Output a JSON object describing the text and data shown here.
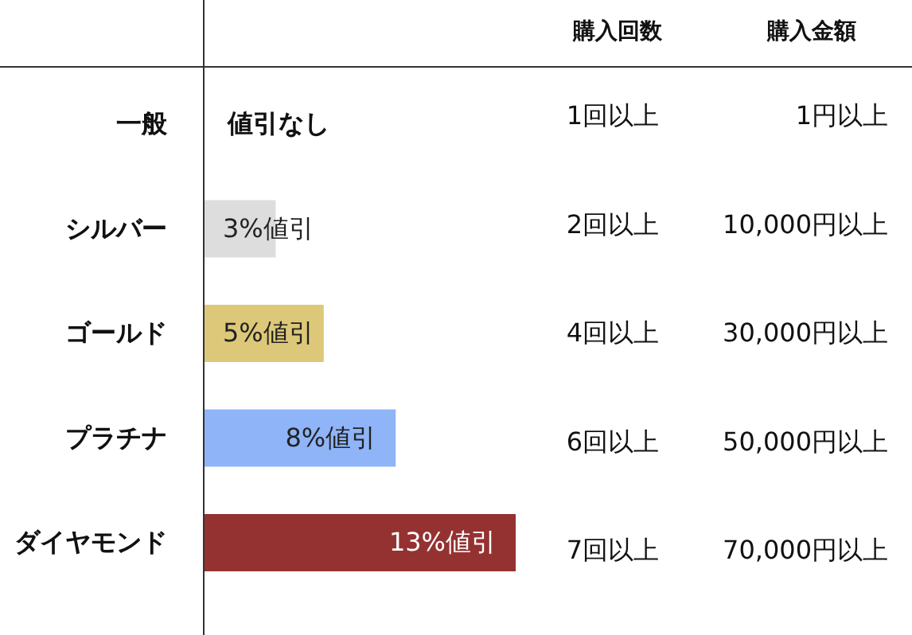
{
  "chart_data": {
    "type": "bar",
    "orientation": "horizontal",
    "categories": [
      "一般",
      "シルバー",
      "ゴールド",
      "プラチナ",
      "ダイヤモンド"
    ],
    "values": [
      0,
      3,
      5,
      8,
      13
    ],
    "value_labels": [
      "値引なし",
      "3%値引",
      "5%値引",
      "8%値引",
      "13%値引"
    ],
    "colors": [
      "#dddddd",
      "#dddddd",
      "#dcc878",
      "#8fb4f8",
      "#943232"
    ],
    "annotations": [
      "購入回数",
      "購入金額",
      "1回以上",
      "1円以上",
      "2回以上",
      "10,000円以上",
      "4回以上",
      "30,000円以上",
      "6回以上",
      "50,000円以上",
      "7回以上",
      "70,000円以上"
    ]
  }
}
